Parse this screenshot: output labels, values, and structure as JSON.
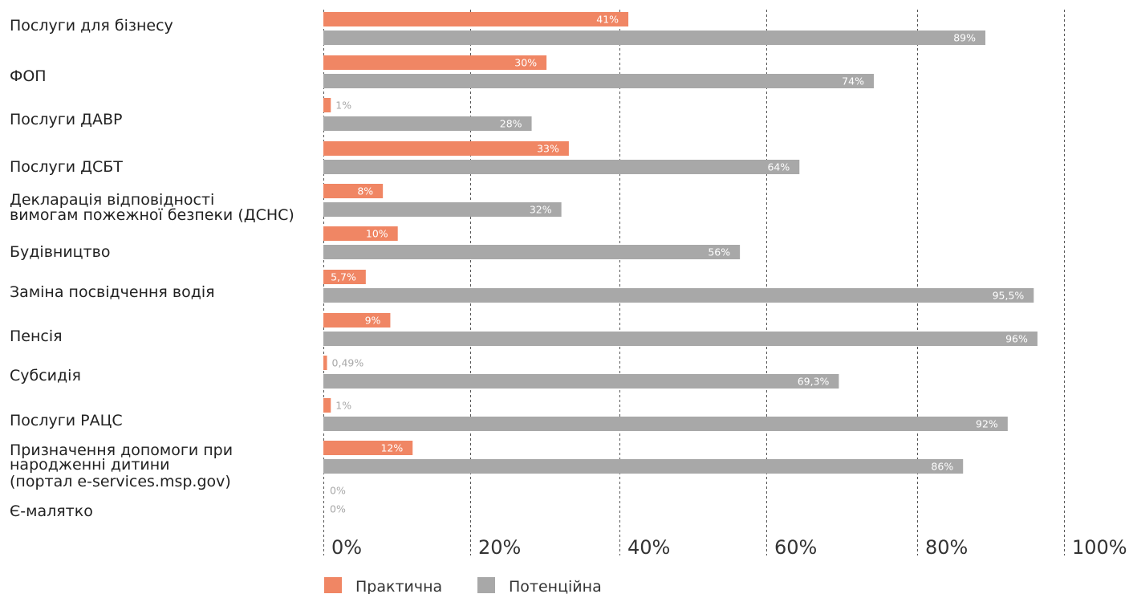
{
  "chart_data": {
    "type": "bar",
    "orientation": "horizontal",
    "categories": [
      [
        "Послуги для бізнесу"
      ],
      [
        "ФОП"
      ],
      [
        "Послуги ДАВР"
      ],
      [
        "Послуги ДСБТ"
      ],
      [
        "Декларація відповідності",
        "вимогам пожежної безпеки (ДСНС)"
      ],
      [
        "Будівництво"
      ],
      [
        "Заміна посвідчення водія"
      ],
      [
        "Пенсія"
      ],
      [
        "Субсидія"
      ],
      [
        "Послуги РАЦС"
      ],
      [
        "Призначення допомоги при",
        "народженні дитини",
        "(портал e-services.msp.gov)"
      ],
      [
        "Є-малятко"
      ]
    ],
    "series": [
      {
        "name": "Практична",
        "color": "#f08664",
        "values": [
          41,
          30,
          1,
          33,
          8,
          10,
          5.7,
          9,
          0.49,
          1,
          12,
          0
        ],
        "labels": [
          "41%",
          "30%",
          "1%",
          "33%",
          "8%",
          "10%",
          "5,7%",
          "9%",
          "0,49%",
          "1%",
          "12%",
          "0%"
        ]
      },
      {
        "name": "Потенційна",
        "color": "#a8a8a8",
        "values": [
          89,
          74,
          28,
          64,
          32,
          56,
          95.5,
          96,
          69.3,
          92,
          86,
          0
        ],
        "labels": [
          "89%",
          "74%",
          "28%",
          "64%",
          "32%",
          "56%",
          "95,5%",
          "96%",
          "69,3%",
          "92%",
          "86%",
          "0%"
        ]
      }
    ],
    "xlim": [
      0,
      100
    ],
    "xticks": [
      "0%",
      "20%",
      "40%",
      "60%",
      "80%",
      "100%"
    ],
    "grid": true,
    "legend_position": "bottom"
  }
}
